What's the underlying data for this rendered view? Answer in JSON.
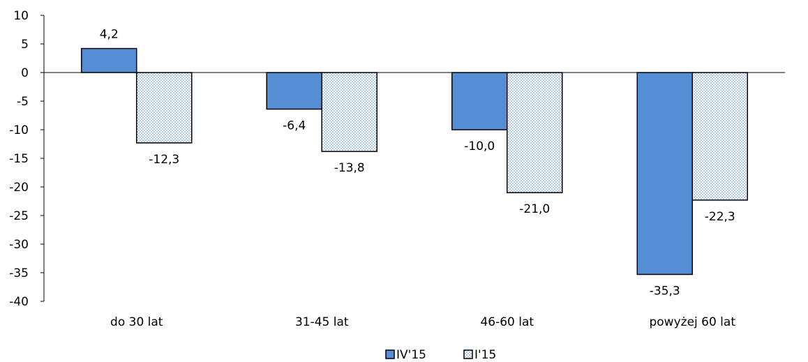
{
  "chart_data": {
    "type": "bar",
    "categories": [
      "do 30 lat",
      "31-45 lat",
      "46-60 lat",
      "powyżej 60 lat"
    ],
    "series": [
      {
        "name": "IV'15",
        "values": [
          4.2,
          -6.4,
          -10.0,
          -35.3
        ],
        "labels": [
          "4,2",
          "-6,4",
          "-10,0",
          "-35,3"
        ],
        "color": "#558ed5"
      },
      {
        "name": "I'15",
        "values": [
          -12.3,
          -13.8,
          -21.0,
          -22.3
        ],
        "labels": [
          "-12,3",
          "-13,8",
          "-21,0",
          "-22,3"
        ],
        "color": "#dbe5f1"
      }
    ],
    "ylim": [
      -40,
      10
    ],
    "yticks": [
      10,
      5,
      0,
      -5,
      -10,
      -15,
      -20,
      -25,
      -30,
      -35,
      -40
    ],
    "title": "",
    "xlabel": "",
    "ylabel": "",
    "grid": false,
    "legend_position": "bottom"
  }
}
